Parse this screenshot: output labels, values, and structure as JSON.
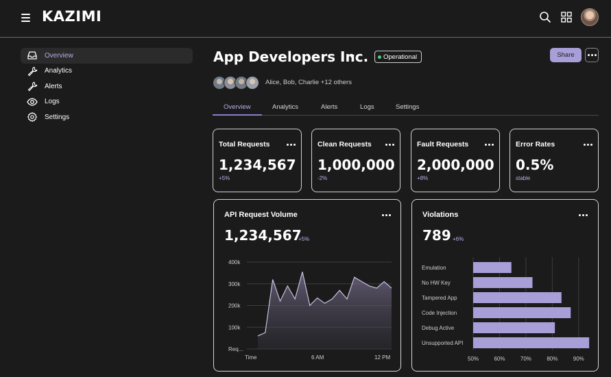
{
  "app": {
    "brand": "KAZIMI"
  },
  "topbar": {
    "icons": [
      "menu-icon",
      "search-icon",
      "grid-icon",
      "user-avatar"
    ]
  },
  "sidebar": {
    "items": [
      {
        "label": "Overview",
        "icon": "inbox-icon",
        "active": true
      },
      {
        "label": "Analytics",
        "icon": "wrench-icon",
        "active": false
      },
      {
        "label": "Alerts",
        "icon": "wrench-icon",
        "active": false
      },
      {
        "label": "Logs",
        "icon": "eye-icon",
        "active": false
      },
      {
        "label": "Settings",
        "icon": "gear-icon",
        "active": false
      }
    ]
  },
  "header": {
    "title": "App Developers Inc.",
    "status": "Operational",
    "share_label": "Share",
    "members_text": "Alice, Bob, Charlie +12 others"
  },
  "tabs": [
    {
      "label": "Overview",
      "active": true
    },
    {
      "label": "Analytics",
      "active": false
    },
    {
      "label": "Alerts",
      "active": false
    },
    {
      "label": "Logs",
      "active": false
    },
    {
      "label": "Settings",
      "active": false
    }
  ],
  "stats": [
    {
      "label": "Total Requests",
      "value": "1,234,567",
      "delta": "+5%"
    },
    {
      "label": "Clean Requests",
      "value": "1,000,000",
      "delta": "-2%"
    },
    {
      "label": "Fault Requests",
      "value": "2,000,000",
      "delta": "+8%"
    },
    {
      "label": "Error Rates",
      "value": "0.5%",
      "delta": "stable"
    }
  ],
  "api_card": {
    "title": "API Request Volume",
    "value": "1,234,567",
    "delta": "+5%"
  },
  "violations_card": {
    "title": "Violations",
    "value": "789",
    "delta": "+6%"
  },
  "colors": {
    "accent": "#a89fd8",
    "background": "#1b1b1b",
    "status_dot": "#4cd17a"
  },
  "chart_data": [
    {
      "type": "area",
      "y_tick_labels": [
        "400k",
        "300k",
        "200k",
        "100k",
        "Req..."
      ],
      "x_tick_labels": [
        "Time",
        "6 AM",
        "12 PM"
      ],
      "ylim": [
        0,
        400000
      ],
      "values": [
        60000,
        75000,
        320000,
        220000,
        290000,
        230000,
        355000,
        200000,
        235000,
        210000,
        230000,
        270000,
        230000,
        330000,
        310000,
        290000,
        280000,
        310000,
        280000
      ],
      "grid": true
    },
    {
      "type": "bar",
      "orientation": "horizontal",
      "categories": [
        "Emulation",
        "No HW Key",
        "Tampered App",
        "Code Injection",
        "Debug Active",
        "Unsupported API"
      ],
      "values": [
        64.5,
        72.5,
        83.5,
        87,
        81,
        94
      ],
      "x_tick_labels": [
        "50%",
        "60%",
        "70%",
        "80%",
        "90%"
      ],
      "xlim": [
        50,
        95
      ],
      "grid": true
    }
  ]
}
